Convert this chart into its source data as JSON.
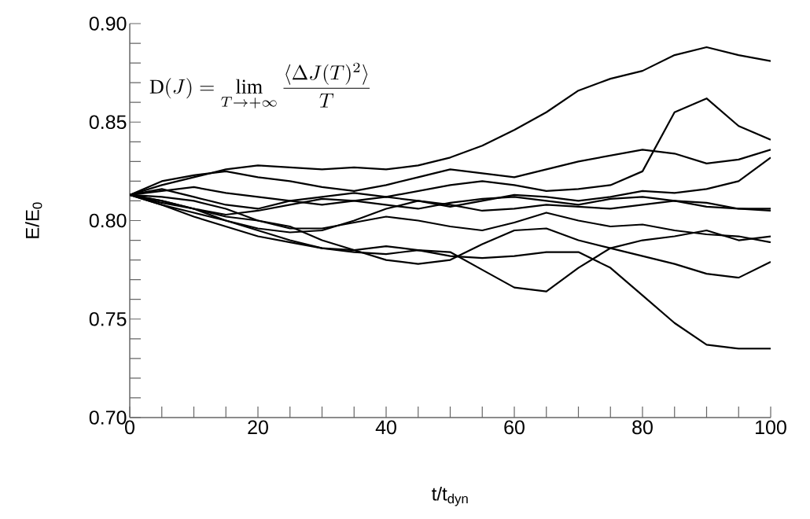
{
  "chart_data": {
    "type": "line",
    "xlabel": "t/t$_{dyn}$",
    "ylabel": "E/E$_{0}$",
    "annotations": [
      "\\mathrm{D}(J) = \\lim_{T\\to+\\infty}\\frac{\\langle\\Delta J(T)^2\\rangle}{T}"
    ],
    "x": [
      0,
      5,
      10,
      15,
      20,
      25,
      30,
      35,
      40,
      45,
      50,
      55,
      60,
      65,
      70,
      75,
      80,
      85,
      90,
      95,
      100
    ],
    "xlim": [
      0,
      100
    ],
    "xticks": [
      0,
      20,
      40,
      60,
      80,
      100
    ],
    "ylim": [
      0.7,
      0.9
    ],
    "yticks": [
      {
        "value": 0.7,
        "label": "0.70"
      },
      {
        "value": 0.75,
        "label": "0.75"
      },
      {
        "value": 0.8,
        "label": "0.80"
      },
      {
        "value": 0.85,
        "label": "0.85"
      },
      {
        "value": 0.9,
        "label": "0.90"
      }
    ],
    "grid": false,
    "marker": "none",
    "line_style": "solid",
    "series": [
      {
        "color": "#000000",
        "values": [
          0.813,
          0.818,
          0.822,
          0.826,
          0.828,
          0.827,
          0.826,
          0.827,
          0.826,
          0.828,
          0.832,
          0.838,
          0.846,
          0.855,
          0.866,
          0.872,
          0.876,
          0.884,
          0.888,
          0.884,
          0.881
        ]
      },
      {
        "color": "#000000",
        "values": [
          0.813,
          0.816,
          0.812,
          0.808,
          0.806,
          0.81,
          0.812,
          0.814,
          0.812,
          0.815,
          0.818,
          0.82,
          0.818,
          0.815,
          0.816,
          0.818,
          0.825,
          0.855,
          0.862,
          0.848,
          0.841
        ]
      },
      {
        "color": "#000000",
        "values": [
          0.813,
          0.82,
          0.823,
          0.825,
          0.822,
          0.82,
          0.817,
          0.815,
          0.818,
          0.822,
          0.826,
          0.824,
          0.822,
          0.826,
          0.83,
          0.833,
          0.836,
          0.834,
          0.829,
          0.831,
          0.836
        ]
      },
      {
        "color": "#000000",
        "values": [
          0.813,
          0.815,
          0.817,
          0.814,
          0.812,
          0.81,
          0.808,
          0.81,
          0.812,
          0.81,
          0.807,
          0.81,
          0.813,
          0.812,
          0.81,
          0.812,
          0.815,
          0.814,
          0.816,
          0.82,
          0.832
        ]
      },
      {
        "color": "#000000",
        "values": [
          0.813,
          0.81,
          0.806,
          0.803,
          0.805,
          0.808,
          0.811,
          0.81,
          0.808,
          0.806,
          0.809,
          0.811,
          0.812,
          0.81,
          0.808,
          0.811,
          0.812,
          0.81,
          0.807,
          0.806,
          0.806
        ]
      },
      {
        "color": "#000000",
        "values": [
          0.813,
          0.808,
          0.804,
          0.8,
          0.796,
          0.794,
          0.795,
          0.8,
          0.806,
          0.81,
          0.808,
          0.805,
          0.806,
          0.808,
          0.807,
          0.806,
          0.808,
          0.81,
          0.809,
          0.806,
          0.805
        ]
      },
      {
        "color": "#000000",
        "values": [
          0.813,
          0.81,
          0.806,
          0.8,
          0.795,
          0.79,
          0.786,
          0.784,
          0.783,
          0.785,
          0.784,
          0.775,
          0.766,
          0.764,
          0.776,
          0.786,
          0.79,
          0.792,
          0.795,
          0.79,
          0.792
        ]
      },
      {
        "color": "#000000",
        "values": [
          0.813,
          0.808,
          0.802,
          0.797,
          0.792,
          0.789,
          0.786,
          0.785,
          0.787,
          0.785,
          0.782,
          0.781,
          0.782,
          0.784,
          0.784,
          0.776,
          0.762,
          0.748,
          0.737,
          0.735,
          0.735
        ]
      },
      {
        "color": "#000000",
        "values": [
          0.813,
          0.809,
          0.806,
          0.802,
          0.8,
          0.797,
          0.79,
          0.785,
          0.78,
          0.778,
          0.78,
          0.788,
          0.795,
          0.796,
          0.79,
          0.786,
          0.782,
          0.778,
          0.773,
          0.771,
          0.779
        ]
      },
      {
        "color": "#000000",
        "values": [
          0.813,
          0.812,
          0.81,
          0.806,
          0.8,
          0.796,
          0.796,
          0.799,
          0.802,
          0.8,
          0.797,
          0.795,
          0.799,
          0.804,
          0.8,
          0.797,
          0.798,
          0.795,
          0.793,
          0.792,
          0.789
        ]
      }
    ]
  }
}
